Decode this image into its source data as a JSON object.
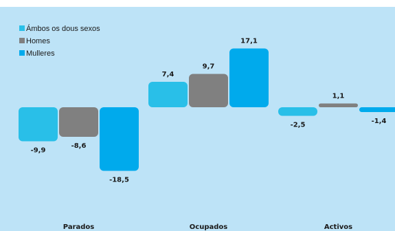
{
  "chart_data": {
    "type": "bar",
    "categories": [
      "Parados",
      "Ocupados",
      "Activos"
    ],
    "series": [
      {
        "name": "Ámbos os dous sexos",
        "values": [
          -9.9,
          7.4,
          -2.5
        ],
        "labels": [
          "-9,9",
          "7,4",
          "-2,5"
        ],
        "color": "#29bfe8"
      },
      {
        "name": "Homes",
        "values": [
          -8.6,
          9.7,
          1.1
        ],
        "labels": [
          "-8,6",
          "9,7",
          "1,1"
        ],
        "color": "#808080"
      },
      {
        "name": "Mulleres",
        "values": [
          -18.5,
          17.1,
          -1.4
        ],
        "labels": [
          "-18,5",
          "17,1",
          "-1,4"
        ],
        "color": "#00aaec"
      }
    ],
    "title": "",
    "xlabel": "",
    "ylabel": "",
    "legend_position": "top-left",
    "grid": false
  },
  "colors": {
    "background": "#bde3f7",
    "label_text": "#1a1a1a"
  }
}
